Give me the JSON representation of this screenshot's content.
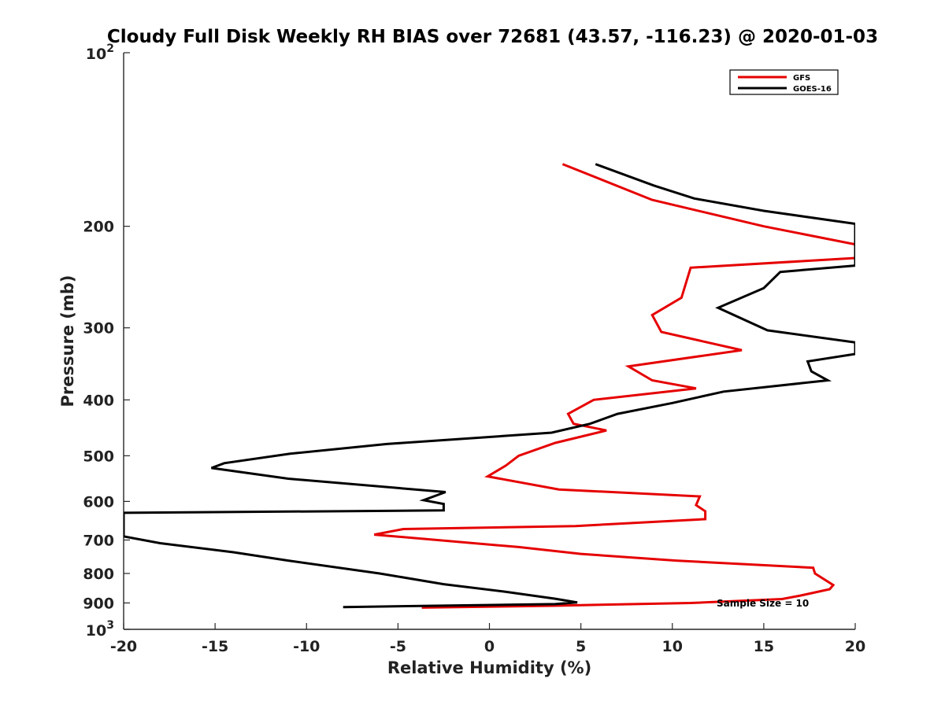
{
  "chart_data": {
    "type": "line",
    "title": "Cloudy Full Disk Weekly RH BIAS over 72681 (43.57, -116.23) @ 2020-01-03",
    "xlabel": "Relative Humidity (%)",
    "ylabel": "Pressure (mb)",
    "xlim": [
      -20,
      20
    ],
    "ylim": [
      100,
      1000
    ],
    "y_scale": "log",
    "y_reversed": true,
    "grid": false,
    "legend_position": "top-right",
    "x_ticks": [
      -20,
      -15,
      -10,
      -5,
      0,
      5,
      10,
      15,
      20
    ],
    "x_tick_labels": [
      "-20",
      "-15",
      "-10",
      "-5",
      "0",
      "5",
      "10",
      "15",
      "20"
    ],
    "y_ticks": [
      200,
      300,
      400,
      500,
      600,
      700,
      800,
      900
    ],
    "y_tick_labels": [
      "200",
      "300",
      "400",
      "500",
      "600",
      "700",
      "800",
      "900"
    ],
    "y_edge_labels": [
      {
        "value": 100,
        "base": "10",
        "exp": "2"
      },
      {
        "value": 1000,
        "base": "10",
        "exp": "3"
      }
    ],
    "annotation": "Sample Size = 10",
    "series": [
      {
        "name": "GFS",
        "color": "#e60000",
        "points": [
          [
            4.0,
            156
          ],
          [
            8.9,
            180
          ],
          [
            15.0,
            200
          ],
          [
            20.0,
            215
          ],
          [
            20.0,
            227
          ],
          [
            11.0,
            236
          ],
          [
            10.5,
            266
          ],
          [
            8.9,
            285
          ],
          [
            9.4,
            305
          ],
          [
            13.8,
            328
          ],
          [
            7.6,
            350
          ],
          [
            8.9,
            370
          ],
          [
            11.3,
            382
          ],
          [
            5.7,
            400
          ],
          [
            4.3,
            423
          ],
          [
            4.6,
            440
          ],
          [
            6.4,
            452
          ],
          [
            3.6,
            475
          ],
          [
            1.6,
            500
          ],
          [
            0.9,
            520
          ],
          [
            -0.1,
            543
          ],
          [
            3.8,
            572
          ],
          [
            11.5,
            588
          ],
          [
            11.3,
            609
          ],
          [
            11.8,
            624
          ],
          [
            11.8,
            644
          ],
          [
            4.7,
            662
          ],
          [
            -4.7,
            670
          ],
          [
            -6.3,
            685
          ],
          [
            1.6,
            720
          ],
          [
            5.0,
            740
          ],
          [
            10.2,
            760
          ],
          [
            17.7,
            782
          ],
          [
            17.8,
            800
          ],
          [
            18.8,
            838
          ],
          [
            18.6,
            852
          ],
          [
            17.0,
            874
          ],
          [
            16.0,
            886
          ],
          [
            11.0,
            900
          ],
          [
            3.5,
            910
          ],
          [
            -3.7,
            917
          ]
        ]
      },
      {
        "name": "GOES-16",
        "color": "#000000",
        "points": [
          [
            5.8,
            156
          ],
          [
            9.0,
            170
          ],
          [
            11.2,
            179
          ],
          [
            15.0,
            188
          ],
          [
            20.0,
            198
          ],
          [
            20.0,
            234
          ],
          [
            15.9,
            240
          ],
          [
            15.0,
            256
          ],
          [
            12.5,
            277
          ],
          [
            15.2,
            303
          ],
          [
            20.0,
            318
          ],
          [
            20.0,
            333
          ],
          [
            17.4,
            343
          ],
          [
            17.6,
            357
          ],
          [
            18.5,
            370
          ],
          [
            12.8,
            387
          ],
          [
            10.0,
            405
          ],
          [
            7.0,
            423
          ],
          [
            5.5,
            440
          ],
          [
            3.4,
            456
          ],
          [
            -5.6,
            477
          ],
          [
            -10.9,
            496
          ],
          [
            -14.5,
            515
          ],
          [
            -15.2,
            525
          ],
          [
            -11.0,
            548
          ],
          [
            -2.4,
            578
          ],
          [
            -3.6,
            597
          ],
          [
            -2.5,
            606
          ],
          [
            -2.5,
            622
          ],
          [
            -20.0,
            628
          ],
          [
            -20.0,
            690
          ],
          [
            -18.0,
            709
          ],
          [
            -14.0,
            735
          ],
          [
            -11.0,
            760
          ],
          [
            -6.0,
            800
          ],
          [
            -2.5,
            835
          ],
          [
            0.8,
            860
          ],
          [
            3.6,
            885
          ],
          [
            4.8,
            898
          ],
          [
            3.6,
            904
          ],
          [
            -8.0,
            915
          ]
        ]
      }
    ]
  }
}
